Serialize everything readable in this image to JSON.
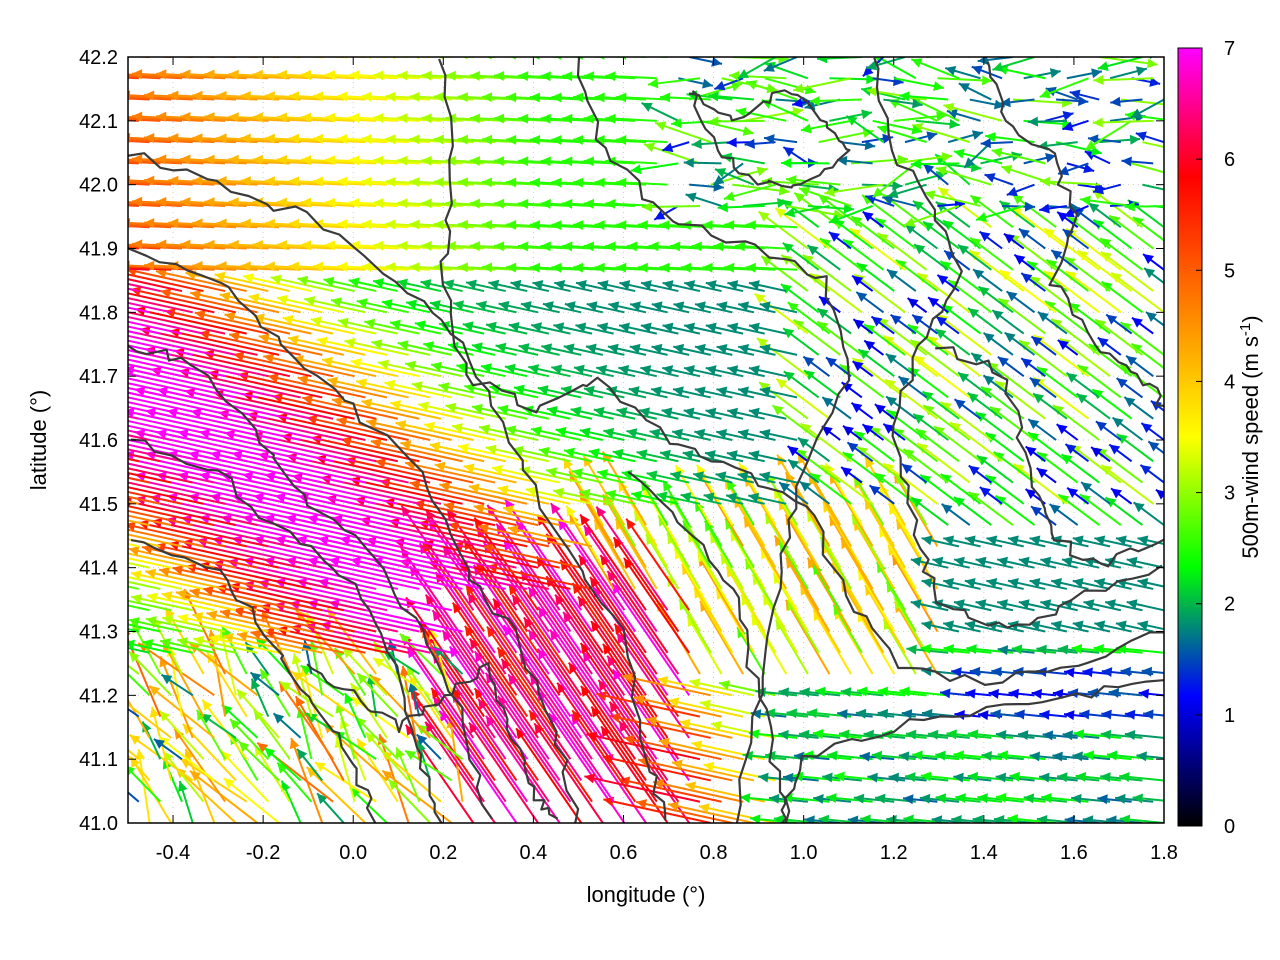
{
  "chart_data": {
    "type": "quiver",
    "xlabel": "longitude (°)",
    "ylabel": "latitude (°)",
    "xlim": [
      -0.5,
      1.8
    ],
    "ylim": [
      41.0,
      42.2
    ],
    "xticks": [
      -0.4,
      -0.2,
      0.0,
      0.2,
      0.4,
      0.6,
      0.8,
      1.0,
      1.2,
      1.4,
      1.6,
      1.8
    ],
    "xtick_labels": [
      "-0.4",
      "-0.2",
      "0.0",
      "0.2",
      "0.4",
      "0.6",
      "0.8",
      "1.0",
      "1.2",
      "1.4",
      "1.6",
      "1.8"
    ],
    "yticks": [
      41.0,
      41.1,
      41.2,
      41.3,
      41.4,
      41.5,
      41.6,
      41.7,
      41.8,
      41.9,
      42.0,
      42.1,
      42.2
    ],
    "ytick_labels": [
      "41.0",
      "41.1",
      "41.2",
      "41.3",
      "41.4",
      "41.5",
      "41.6",
      "41.7",
      "41.8",
      "41.9",
      "42.0",
      "42.1",
      "42.2"
    ],
    "grid": true,
    "colorbar": {
      "label": "500m-wind speed (m s",
      "label_sup": "-1",
      "label_end": ")",
      "range": [
        0,
        7
      ],
      "ticks": [
        0,
        1,
        2,
        3,
        4,
        5,
        6,
        7
      ],
      "tick_labels": [
        "0",
        "1",
        "2",
        "3",
        "4",
        "5",
        "6",
        "7"
      ],
      "colors": [
        "#000000",
        "#0000ff",
        "#00ff00",
        "#ffff00",
        "#ff8000",
        "#ff0000",
        "#ff00ff"
      ]
    },
    "contour_color": "#3a3a3a",
    "vector_field": "gridded 500 m wind vectors colored by speed; strongest (≈7 m/s, magenta) flowing from the east-southeast in the west/southwest, weak (<2 m/s) winds in the northeast and east"
  }
}
